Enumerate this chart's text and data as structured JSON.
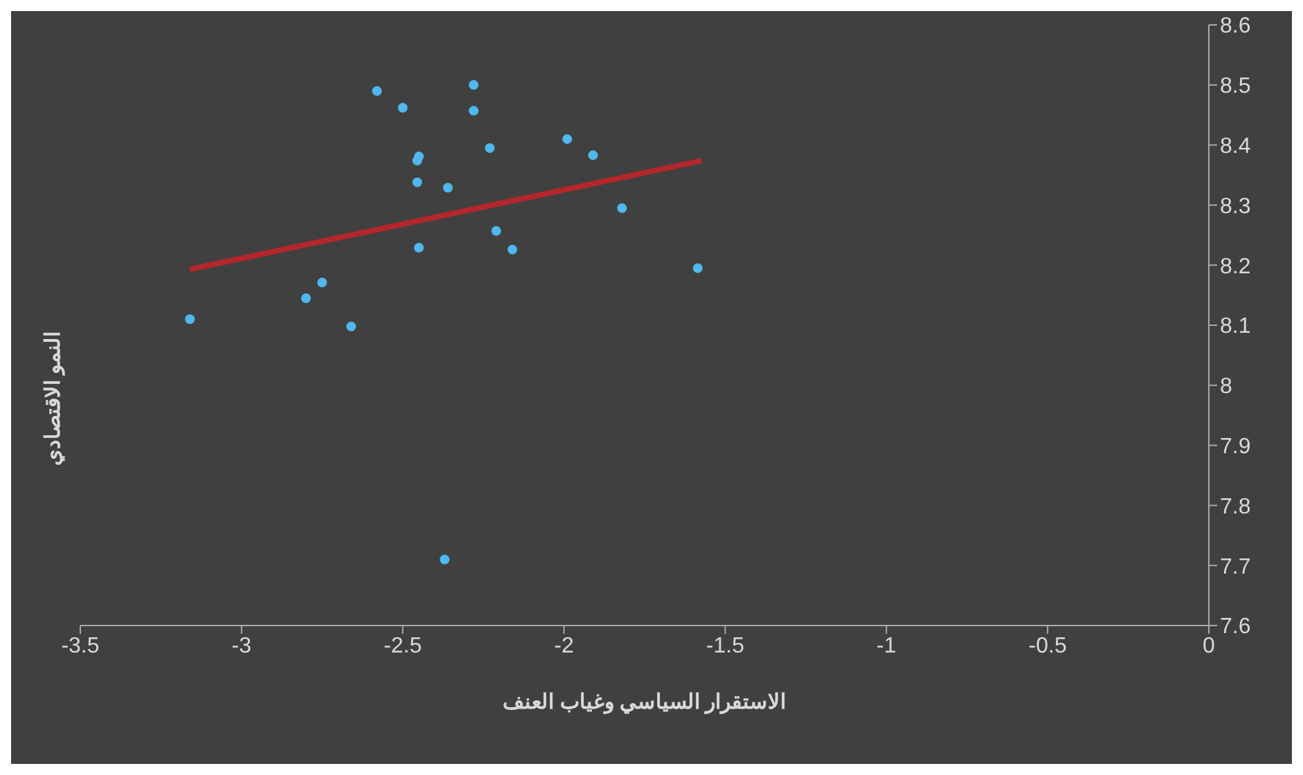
{
  "chart_data": {
    "type": "scatter",
    "xlabel": "الاستقرار السياسي وغياب العنف",
    "ylabel": "النمو الاقتصادي",
    "xlim": [
      -3.5,
      0
    ],
    "xticks": [
      -3.5,
      -3,
      -2.5,
      -2,
      -1.5,
      -1,
      -0.5,
      0
    ],
    "ylim": [
      7.6,
      8.6
    ],
    "yticks": [
      7.6,
      7.7,
      7.8,
      7.9,
      8,
      8.1,
      8.2,
      8.3,
      8.4,
      8.5,
      8.6
    ],
    "grid": false,
    "legend": false,
    "series": [
      {
        "marker": "circle",
        "color": "#4fb8ec",
        "x": [
          -3.16,
          -2.8,
          -2.75,
          -2.66,
          -2.58,
          -2.5,
          -2.45,
          -2.455,
          -2.455,
          -2.45,
          -2.36,
          -2.37,
          -2.28,
          -2.28,
          -2.23,
          -2.21,
          -2.16,
          -1.99,
          -1.91,
          -1.82,
          -1.585
        ],
        "values": [
          8.11,
          8.145,
          8.171,
          8.098,
          8.49,
          8.462,
          8.381,
          8.374,
          8.338,
          8.229,
          8.329,
          7.71,
          8.5,
          8.457,
          8.395,
          8.257,
          8.226,
          8.41,
          8.383,
          8.295,
          8.195
        ]
      },
      {
        "type": "line",
        "color": "#b3272c",
        "x": [
          -3.16,
          -1.573
        ],
        "values": [
          8.193,
          8.374
        ]
      }
    ]
  }
}
